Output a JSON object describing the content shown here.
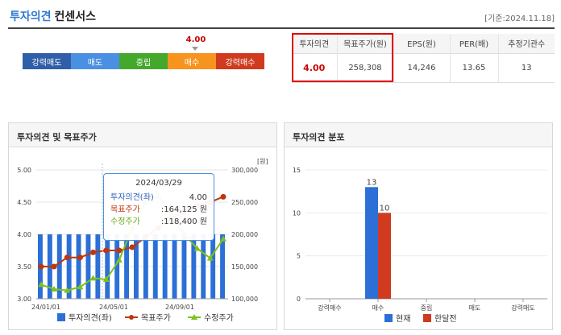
{
  "header": {
    "title_prefix": "투자의견",
    "title_suffix": "컨센서스",
    "date": "[기준:2024.11.18]"
  },
  "opinion_scale": {
    "current_value": "4.00",
    "current_level": 4.0,
    "segments": [
      {
        "label": "강력매도",
        "color": "#2f5fa8"
      },
      {
        "label": "매도",
        "color": "#4a90e2"
      },
      {
        "label": "중립",
        "color": "#43a82c"
      },
      {
        "label": "매수",
        "color": "#f7941d"
      },
      {
        "label": "강력매수",
        "color": "#d03a1e"
      }
    ]
  },
  "consensus_table": {
    "headers": [
      "투자의견",
      "목표주가(원)",
      "EPS(원)",
      "PER(배)",
      "추정기관수"
    ],
    "values": [
      "4.00",
      "258,308",
      "14,246",
      "13.65",
      "13"
    ]
  },
  "left_panel": {
    "title": "투자의견 및 목표주가",
    "y2_unit": "[원]",
    "tooltip": {
      "date": "2024/03/29",
      "rows": [
        {
          "label": "투자의견(좌)",
          "value": "4.00",
          "color": "#2c5fb8"
        },
        {
          "label": "목표주가",
          "value": ":164,125 원",
          "color": "#c0360c"
        },
        {
          "label": "수정주가",
          "value": ":118,400 원",
          "color": "#6aa81e"
        }
      ]
    },
    "legend": [
      "투자의견(좌)",
      "목표주가",
      "수정주가"
    ]
  },
  "right_panel": {
    "title": "투자의견 분포",
    "legend": [
      "현재",
      "한달전"
    ]
  },
  "chart_data": [
    {
      "type": "bar+line",
      "title": "투자의견 및 목표주가",
      "x_ticks": [
        "24/01/01",
        "24/05/01",
        "24/09/01"
      ],
      "y_left": {
        "ticks": [
          "5.00",
          "4.50",
          "4.00",
          "3.50",
          "3.00"
        ],
        "range": [
          3.0,
          5.0
        ]
      },
      "y_right": {
        "ticks": [
          "300,000",
          "250,000",
          "200,000",
          "150,000",
          "100,000"
        ],
        "range": [
          100000,
          300000
        ],
        "unit": "[원]"
      },
      "opinion_bars": [
        4.0,
        4.0,
        4.0,
        4.0,
        4.0,
        4.0,
        4.0,
        4.0,
        4.0,
        4.0,
        4.0,
        4.0,
        4.0,
        4.0,
        4.0,
        4.0,
        4.0,
        4.0,
        4.0,
        4.0
      ],
      "target_price": [
        150000,
        150000,
        164125,
        164125,
        172000,
        175000,
        175000,
        180000,
        195000,
        210000,
        225000,
        235000,
        245000,
        250000,
        258308
      ],
      "adjusted_price": [
        122000,
        115000,
        113000,
        118400,
        132000,
        130000,
        160000,
        210000,
        250000,
        260000,
        230000,
        200000,
        178000,
        163000,
        193000
      ],
      "series_colors": {
        "opinion": "#2c6fd6",
        "target": "#c0360c",
        "adjusted": "#7dc21e"
      }
    },
    {
      "type": "bar",
      "title": "투자의견 분포",
      "categories": [
        "강력매수",
        "매수",
        "중립",
        "매도",
        "강력매도"
      ],
      "ylim": [
        0,
        15
      ],
      "y_ticks": [
        "15",
        "10",
        "5",
        "0"
      ],
      "series": [
        {
          "name": "현재",
          "values": [
            0,
            13,
            0,
            0,
            0
          ],
          "color": "#2c6fd6"
        },
        {
          "name": "한달전",
          "values": [
            0,
            10,
            0,
            0,
            0
          ],
          "color": "#d03a1e"
        }
      ]
    }
  ]
}
